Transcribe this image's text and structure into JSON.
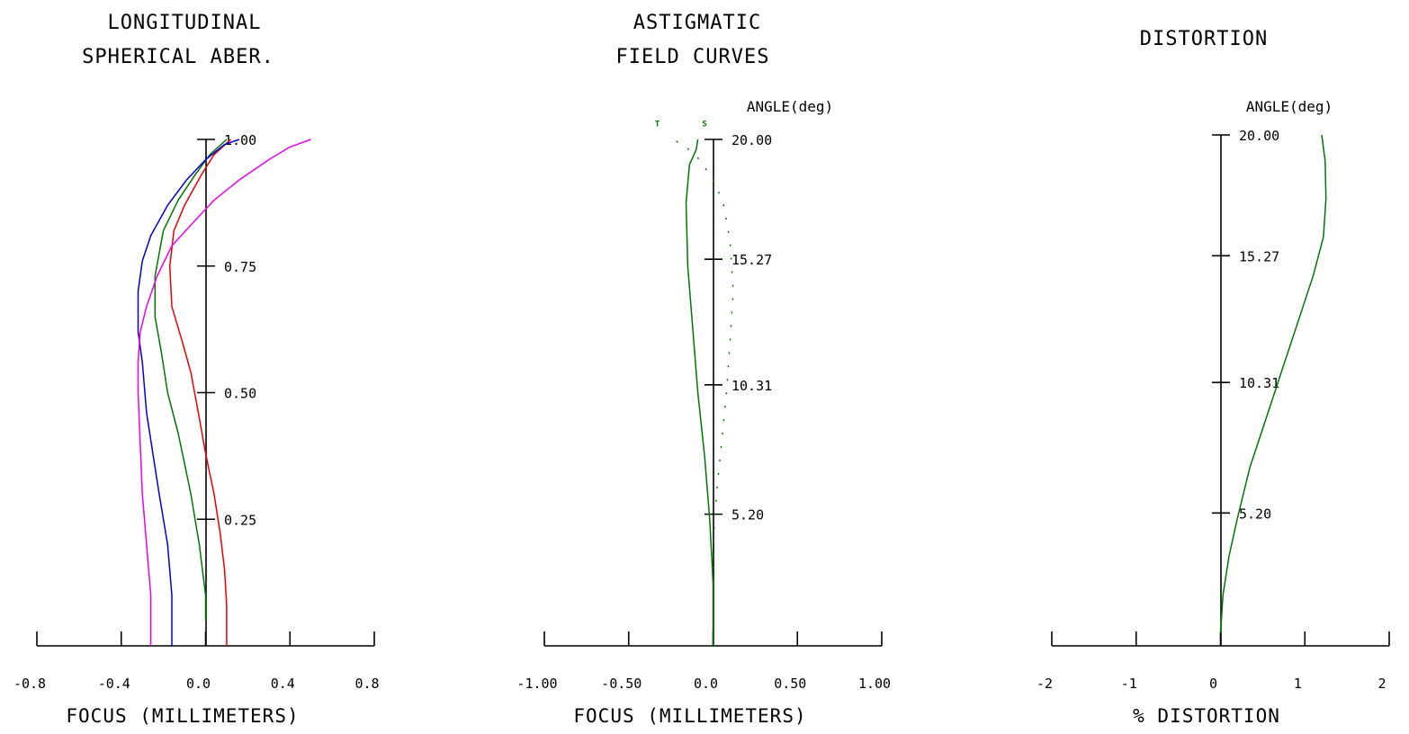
{
  "colors": {
    "red": "#ee0000",
    "green": "#007700",
    "blue": "#0000dd",
    "magenta": "#ee00ee"
  },
  "chart_data": [
    {
      "type": "line",
      "title_lines": [
        "LONGITUDINAL",
        "SPHERICAL ABER."
      ],
      "xlabel": "FOCUS (MILLIMETERS)",
      "xlim": [
        -0.8,
        0.8
      ],
      "xticks": [
        -0.8,
        -0.4,
        0.0,
        0.4,
        0.8
      ],
      "xtick_labels": [
        "-0.8",
        "-0.4",
        "0.0",
        "0.4",
        "0.8"
      ],
      "ylim": [
        0,
        1
      ],
      "yticks": [
        0.25,
        0.5,
        0.75,
        1.0
      ],
      "ytick_labels": [
        "0.25",
        "0.50",
        "0.75",
        "1.00"
      ],
      "series": [
        {
          "color": "red",
          "style": "solid",
          "points": [
            [
              0.1,
              0
            ],
            [
              0.1,
              0.08
            ],
            [
              0.09,
              0.15
            ],
            [
              0.07,
              0.22
            ],
            [
              0.04,
              0.3
            ],
            [
              0.0,
              0.38
            ],
            [
              -0.03,
              0.45
            ],
            [
              -0.07,
              0.54
            ],
            [
              -0.11,
              0.6
            ],
            [
              -0.16,
              0.67
            ],
            [
              -0.17,
              0.75
            ],
            [
              -0.15,
              0.82
            ],
            [
              -0.1,
              0.87
            ],
            [
              -0.02,
              0.93
            ],
            [
              0.04,
              0.97
            ],
            [
              0.12,
              1.0
            ]
          ]
        },
        {
          "color": "green",
          "style": "solid",
          "points": [
            [
              0.0,
              0.05
            ],
            [
              0.0,
              0.1
            ],
            [
              -0.03,
              0.2
            ],
            [
              -0.07,
              0.3
            ],
            [
              -0.1,
              0.36
            ],
            [
              -0.13,
              0.42
            ],
            [
              -0.18,
              0.5
            ],
            [
              -0.21,
              0.58
            ],
            [
              -0.24,
              0.65
            ],
            [
              -0.24,
              0.73
            ],
            [
              -0.2,
              0.82
            ],
            [
              -0.13,
              0.88
            ],
            [
              -0.05,
              0.93
            ],
            [
              0.02,
              0.97
            ],
            [
              0.1,
              1.0
            ]
          ]
        },
        {
          "color": "blue",
          "style": "solid",
          "points": [
            [
              -0.16,
              0
            ],
            [
              -0.16,
              0.1
            ],
            [
              -0.18,
              0.2
            ],
            [
              -0.22,
              0.3
            ],
            [
              -0.25,
              0.38
            ],
            [
              -0.28,
              0.46
            ],
            [
              -0.3,
              0.56
            ],
            [
              -0.32,
              0.62
            ],
            [
              -0.32,
              0.7
            ],
            [
              -0.3,
              0.76
            ],
            [
              -0.26,
              0.81
            ],
            [
              -0.18,
              0.87
            ],
            [
              -0.09,
              0.92
            ],
            [
              0.0,
              0.96
            ],
            [
              0.09,
              0.99
            ],
            [
              0.16,
              1.0
            ]
          ]
        },
        {
          "color": "magenta",
          "style": "solid",
          "points": [
            [
              -0.26,
              0
            ],
            [
              -0.26,
              0.1
            ],
            [
              -0.28,
              0.2
            ],
            [
              -0.3,
              0.3
            ],
            [
              -0.31,
              0.4
            ],
            [
              -0.32,
              0.5
            ],
            [
              -0.32,
              0.56
            ],
            [
              -0.31,
              0.62
            ],
            [
              -0.28,
              0.67
            ],
            [
              -0.23,
              0.73
            ],
            [
              -0.16,
              0.79
            ],
            [
              -0.05,
              0.84
            ],
            [
              0.04,
              0.88
            ],
            [
              0.16,
              0.92
            ],
            [
              0.3,
              0.96
            ],
            [
              0.4,
              0.985
            ],
            [
              0.5,
              1.0
            ]
          ]
        }
      ]
    },
    {
      "type": "line",
      "title_lines": [
        "ASTIGMATIC",
        "FIELD CURVES"
      ],
      "xlabel": "FOCUS (MILLIMETERS)",
      "ylabel": "ANGLE(deg)",
      "xlim": [
        -1.0,
        1.0
      ],
      "xticks": [
        -1.0,
        -0.5,
        0.0,
        0.5,
        1.0
      ],
      "xtick_labels": [
        "-1.00",
        "-0.50",
        "0.0",
        "0.50",
        "1.00"
      ],
      "ylim": [
        0,
        20
      ],
      "yticks": [
        5.2,
        10.31,
        15.27,
        20.0
      ],
      "ytick_labels": [
        "5.20",
        "10.31",
        "15.27",
        "20.00"
      ],
      "markers": [
        {
          "text": "T",
          "x": -0.33,
          "y": 20.3
        },
        {
          "text": "S",
          "x": -0.05,
          "y": 20.3
        }
      ],
      "series": [
        {
          "name": "S",
          "color": "green",
          "style": "solid",
          "points": [
            [
              0.0,
              0
            ],
            [
              0.0,
              2.5
            ],
            [
              -0.02,
              5
            ],
            [
              -0.05,
              7.5
            ],
            [
              -0.09,
              10
            ],
            [
              -0.12,
              12.5
            ],
            [
              -0.15,
              15
            ],
            [
              -0.16,
              17.5
            ],
            [
              -0.14,
              19
            ],
            [
              -0.1,
              19.6
            ],
            [
              -0.09,
              20.0
            ]
          ]
        },
        {
          "name": "T",
          "color": "green",
          "style": "dotted",
          "points": [
            [
              0.0,
              2.5
            ],
            [
              0.0,
              4
            ],
            [
              0.02,
              6
            ],
            [
              0.05,
              8
            ],
            [
              0.08,
              10
            ],
            [
              0.1,
              12
            ],
            [
              0.12,
              14
            ],
            [
              0.1,
              16
            ],
            [
              0.06,
              17.5
            ],
            [
              0.0,
              18.4
            ],
            [
              -0.08,
              19.2
            ],
            [
              -0.16,
              19.7
            ],
            [
              -0.26,
              20.1
            ]
          ]
        }
      ]
    },
    {
      "type": "line",
      "title_lines": [
        "DISTORTION"
      ],
      "xlabel": "% DISTORTION",
      "ylabel": "ANGLE(deg)",
      "xlim": [
        -2,
        2
      ],
      "xticks": [
        -2,
        -1,
        0,
        1,
        2
      ],
      "xtick_labels": [
        "-2",
        "-1",
        "0",
        "1",
        "2"
      ],
      "ylim": [
        0,
        20
      ],
      "yticks": [
        5.2,
        10.31,
        15.27,
        20.0
      ],
      "ytick_labels": [
        "5.20",
        "10.31",
        "15.27",
        "20.00"
      ],
      "series": [
        {
          "color": "green",
          "style": "solid",
          "points": [
            [
              0.0,
              0.5
            ],
            [
              0.03,
              2
            ],
            [
              0.1,
              3.5
            ],
            [
              0.2,
              5
            ],
            [
              0.35,
              7
            ],
            [
              0.55,
              9
            ],
            [
              0.75,
              11
            ],
            [
              0.95,
              13
            ],
            [
              1.1,
              14.5
            ],
            [
              1.22,
              16
            ],
            [
              1.25,
              17.5
            ],
            [
              1.24,
              19
            ],
            [
              1.2,
              20
            ]
          ]
        }
      ]
    }
  ]
}
